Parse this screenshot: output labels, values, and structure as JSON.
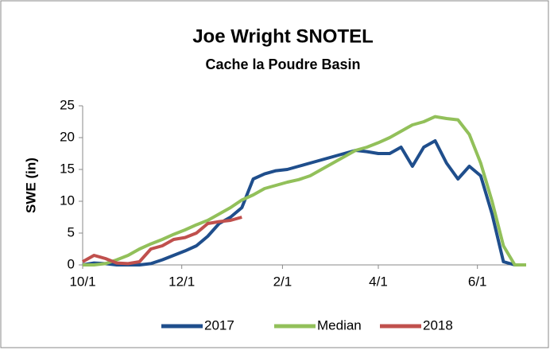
{
  "chart_data": {
    "type": "line",
    "title": "Joe Wright SNOTEL",
    "subtitle": "Cache la Poudre Basin",
    "ylabel": "SWE (in)",
    "x": [
      "10/1",
      "10/8",
      "10/15",
      "10/22",
      "10/29",
      "11/5",
      "11/12",
      "11/19",
      "11/26",
      "12/3",
      "12/10",
      "12/17",
      "12/24",
      "12/31",
      "1/7",
      "1/14",
      "1/21",
      "1/28",
      "2/4",
      "2/11",
      "2/18",
      "2/25",
      "3/4",
      "3/11",
      "3/18",
      "3/25",
      "4/1",
      "4/8",
      "4/15",
      "4/22",
      "4/29",
      "5/6",
      "5/13",
      "5/20",
      "5/27",
      "6/3",
      "6/10",
      "6/17",
      "6/24",
      "7/1"
    ],
    "xlim": [
      "10/1",
      "7/1"
    ],
    "xticks": [
      "10/1",
      "12/1",
      "2/1",
      "4/1",
      "6/1"
    ],
    "ylim": [
      0,
      25
    ],
    "yticks": [
      0,
      5,
      10,
      15,
      20,
      25
    ],
    "grid": false,
    "legend": "bottom",
    "series": [
      {
        "name": "2017",
        "color": "#1f4e8c",
        "values": [
          0,
          0.3,
          0.2,
          0,
          0,
          0,
          0.2,
          0.8,
          1.5,
          2.2,
          3,
          4.5,
          6.5,
          7.5,
          9,
          13.5,
          14.3,
          14.8,
          15,
          15.5,
          16,
          16.5,
          17,
          17.5,
          18,
          17.8,
          17.5,
          17.5,
          18.5,
          15.5,
          18.5,
          19.5,
          16,
          13.5,
          15.5,
          14,
          8,
          0.5,
          0,
          0
        ]
      },
      {
        "name": "Median",
        "color": "#92c05a",
        "values": [
          0,
          0,
          0.2,
          0.8,
          1.5,
          2.5,
          3.3,
          4,
          4.8,
          5.5,
          6.3,
          7,
          8,
          9,
          10.2,
          11,
          12,
          12.5,
          13,
          13.4,
          14,
          15,
          16,
          17,
          18,
          18.5,
          19.2,
          20,
          21,
          22,
          22.5,
          23.3,
          23,
          22.8,
          20.5,
          16,
          10,
          3,
          0,
          0
        ]
      },
      {
        "name": "2018",
        "color": "#c0504d",
        "values": [
          0.5,
          1.5,
          1,
          0.3,
          0.2,
          0.5,
          2.5,
          3,
          4,
          4.3,
          5,
          6.5,
          6.8,
          7,
          7.5,
          null,
          null,
          null,
          null,
          null,
          null,
          null,
          null,
          null,
          null,
          null,
          null,
          null,
          null,
          null,
          null,
          null,
          null,
          null,
          null,
          null,
          null,
          null,
          null,
          null
        ]
      }
    ]
  }
}
